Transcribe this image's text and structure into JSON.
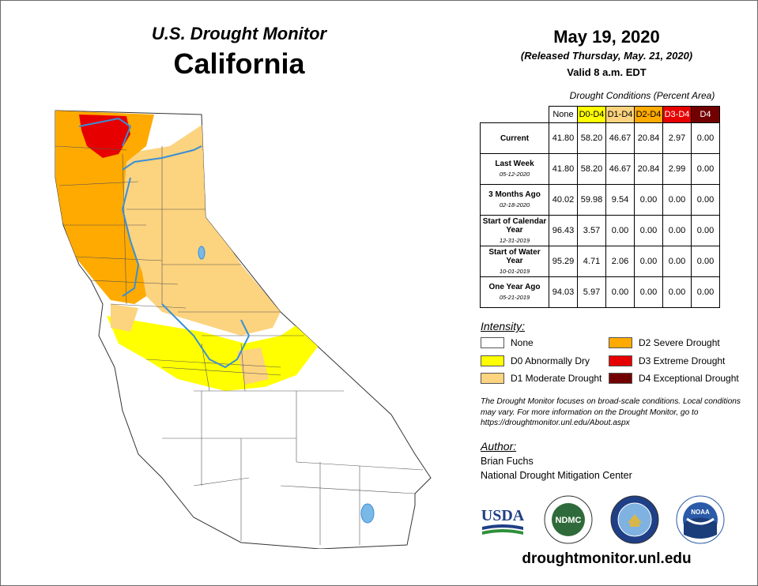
{
  "header": {
    "monitor_title": "U.S. Drought Monitor",
    "state": "California",
    "date": "May 19, 2020",
    "released": "(Released Thursday, May. 21, 2020)",
    "valid": "Valid 8 a.m. EDT"
  },
  "table": {
    "caption": "Drought Conditions (Percent Area)",
    "columns": [
      "None",
      "D0-D4",
      "D1-D4",
      "D2-D4",
      "D3-D4",
      "D4"
    ],
    "rows": [
      {
        "label": "Current",
        "date": "",
        "values": [
          "41.80",
          "58.20",
          "46.67",
          "20.84",
          "2.97",
          "0.00"
        ]
      },
      {
        "label": "Last Week",
        "date": "05-12-2020",
        "values": [
          "41.80",
          "58.20",
          "46.67",
          "20.84",
          "2.99",
          "0.00"
        ]
      },
      {
        "label": "3 Months Ago",
        "date": "02-18-2020",
        "values": [
          "40.02",
          "59.98",
          "9.54",
          "0.00",
          "0.00",
          "0.00"
        ]
      },
      {
        "label": "Start of Calendar Year",
        "date": "12-31-2019",
        "values": [
          "96.43",
          "3.57",
          "0.00",
          "0.00",
          "0.00",
          "0.00"
        ]
      },
      {
        "label": "Start of Water Year",
        "date": "10-01-2019",
        "values": [
          "95.29",
          "4.71",
          "2.06",
          "0.00",
          "0.00",
          "0.00"
        ]
      },
      {
        "label": "One Year Ago",
        "date": "05-21-2019",
        "values": [
          "94.03",
          "5.97",
          "0.00",
          "0.00",
          "0.00",
          "0.00"
        ]
      }
    ]
  },
  "legend": {
    "heading": "Intensity:",
    "items": [
      {
        "label": "None",
        "color": "#ffffff"
      },
      {
        "label": "D0 Abnormally Dry",
        "color": "#ffff00"
      },
      {
        "label": "D1 Moderate Drought",
        "color": "#fcd37f"
      },
      {
        "label": "D2 Severe Drought",
        "color": "#ffaa00"
      },
      {
        "label": "D3 Extreme Drought",
        "color": "#e60000"
      },
      {
        "label": "D4 Exceptional Drought",
        "color": "#730000"
      }
    ]
  },
  "note": "The Drought Monitor focuses on broad-scale conditions. Local conditions may vary. For more information on the Drought Monitor, go to https://droughtmonitor.unl.edu/About.aspx",
  "author": {
    "heading": "Author:",
    "name": "Brian Fuchs",
    "org": "National Drought Mitigation Center"
  },
  "logos": {
    "usda": "USDA",
    "ndmc": "NDMC",
    "noaa": "NOAA"
  },
  "url": "droughtmonitor.unl.edu"
}
